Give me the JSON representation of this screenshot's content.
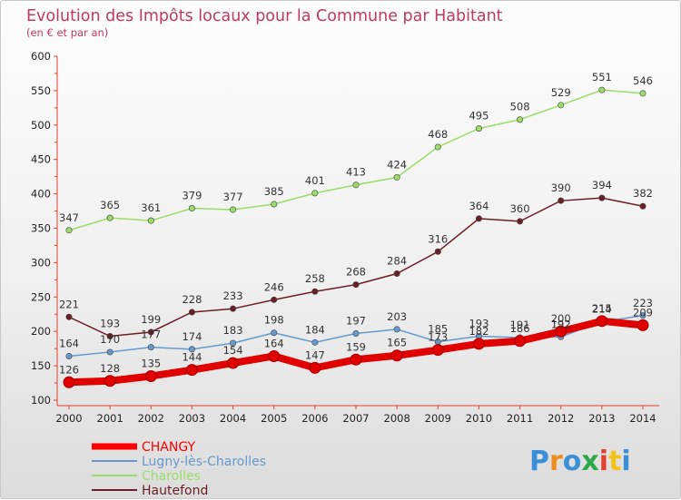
{
  "chart_data": {
    "type": "line",
    "title": "Evolution des Impôts locaux pour la Commune par Habitant",
    "subtitle": "(en € et par an)",
    "xlabel": "",
    "ylabel": "",
    "ylim": [
      100,
      600
    ],
    "yticks": [
      100,
      150,
      200,
      250,
      300,
      350,
      400,
      450,
      500,
      550,
      600
    ],
    "grid": false,
    "legend_position": "bottom-left",
    "x": [
      2000,
      2001,
      2002,
      2003,
      2004,
      2005,
      2006,
      2007,
      2008,
      2009,
      2010,
      2011,
      2012,
      2013,
      2014
    ],
    "series": [
      {
        "name": "CHANGY",
        "color": "#ff0000",
        "values": [
          126,
          128,
          135,
          144,
          154,
          164,
          147,
          159,
          165,
          173,
          182,
          186,
          200,
          215,
          209
        ]
      },
      {
        "name": "Lugny-lès-Charolles",
        "color": "#6699cc",
        "values": [
          164,
          170,
          177,
          174,
          183,
          198,
          184,
          197,
          203,
          185,
          193,
          191,
          192,
          214,
          223
        ]
      },
      {
        "name": "Charolles",
        "color": "#99dd66",
        "values": [
          347,
          365,
          361,
          379,
          377,
          385,
          401,
          413,
          424,
          468,
          495,
          508,
          529,
          551,
          546
        ]
      },
      {
        "name": "Hautefond",
        "color": "#6b1f24",
        "values": [
          221,
          193,
          199,
          228,
          233,
          246,
          258,
          268,
          284,
          316,
          364,
          360,
          390,
          394,
          382
        ]
      }
    ]
  },
  "branding": {
    "logo_text": "Proxiti",
    "logo_colors": [
      "#3a8fd6",
      "#f08c1e",
      "#3a8fd6",
      "#2aa84a",
      "#e2402f",
      "#f2c21b",
      "#3a8fd6"
    ]
  }
}
